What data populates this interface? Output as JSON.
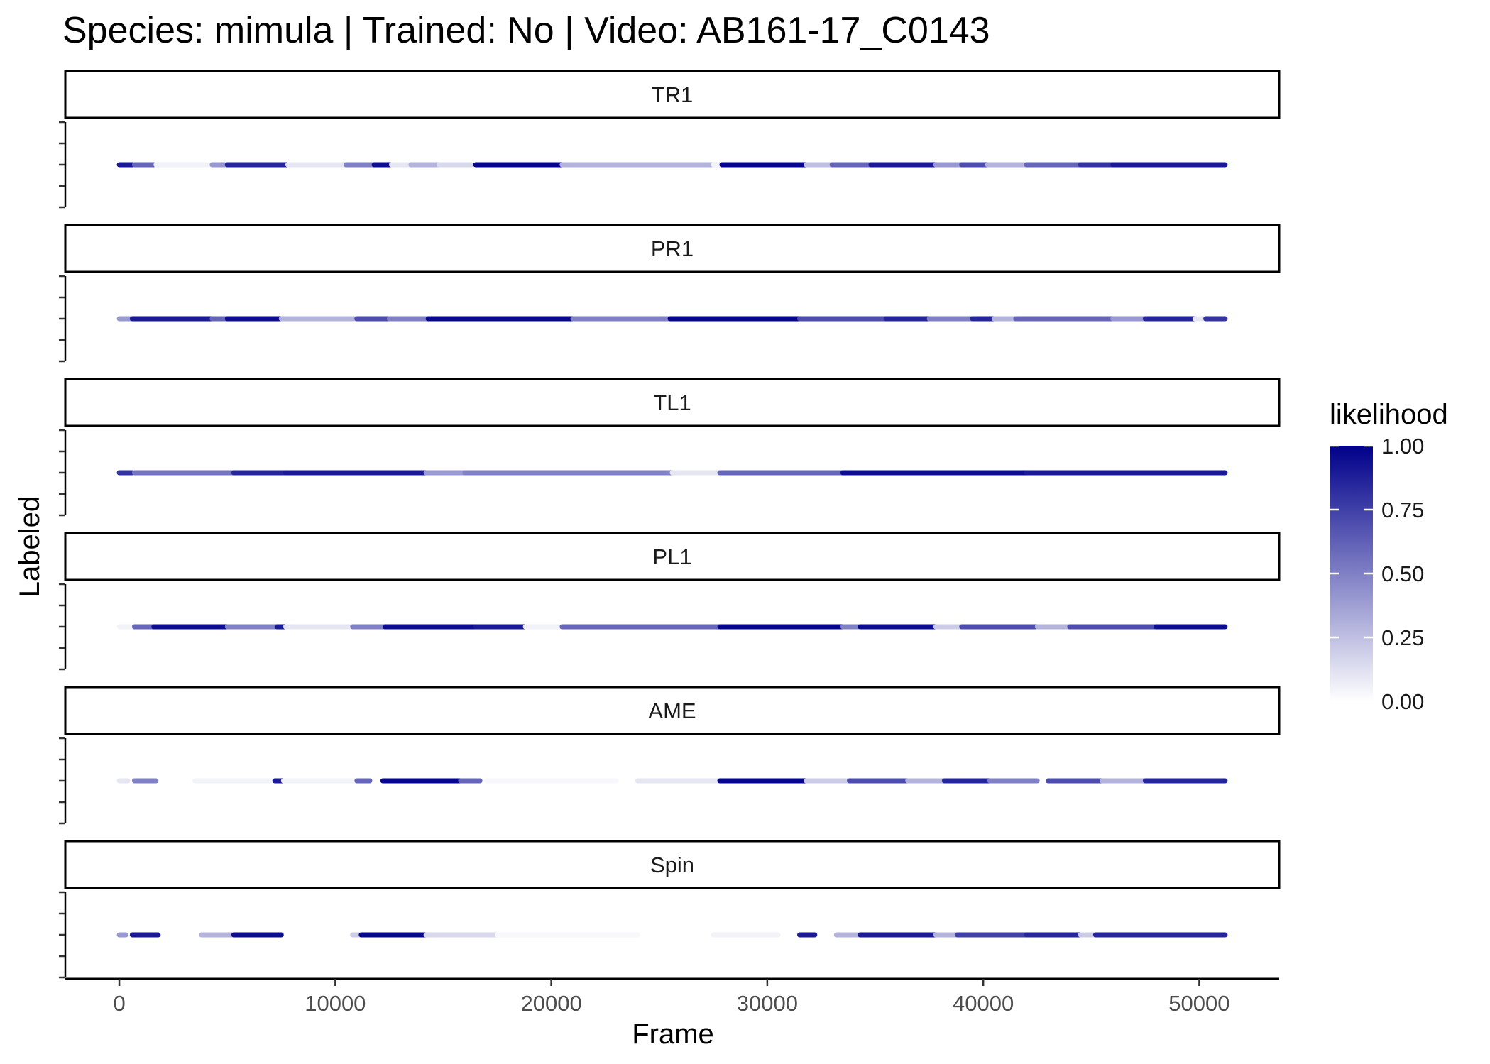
{
  "chart_data": {
    "type": "scatter",
    "title": "Species: mimula | Trained: No | Video: AB161-17_C0143",
    "xlabel": "Frame",
    "ylabel": "Labeled",
    "xlim": [
      -2500,
      53700
    ],
    "xticks": [
      0,
      10000,
      20000,
      30000,
      40000,
      50000
    ],
    "grid": false,
    "facets": [
      "TR1",
      "PR1",
      "TL1",
      "PL1",
      "AME",
      "Spin"
    ],
    "legend": {
      "title": "likelihood",
      "position": "right",
      "ticks": [
        "1.00",
        "0.75",
        "0.50",
        "0.25",
        "0.00"
      ],
      "color_low": "#ffffff",
      "color_high": "#00008b"
    },
    "series": [
      {
        "facet": "TR1",
        "segments": [
          [
            0,
            600,
            0.9
          ],
          [
            700,
            1600,
            0.6
          ],
          [
            1700,
            4200,
            0.05
          ],
          [
            4300,
            5000,
            0.4
          ],
          [
            5000,
            7800,
            0.85
          ],
          [
            7800,
            10500,
            0.1
          ],
          [
            10500,
            11800,
            0.5
          ],
          [
            11800,
            12600,
            0.95
          ],
          [
            12600,
            13500,
            0.1
          ],
          [
            13500,
            14800,
            0.3
          ],
          [
            14800,
            16500,
            0.15
          ],
          [
            16500,
            20500,
            0.98
          ],
          [
            20500,
            27500,
            0.3
          ],
          [
            27500,
            27900,
            0.05
          ],
          [
            27900,
            31800,
            0.98
          ],
          [
            31800,
            33000,
            0.25
          ],
          [
            33000,
            34800,
            0.6
          ],
          [
            34800,
            37800,
            0.9
          ],
          [
            37800,
            39000,
            0.4
          ],
          [
            39000,
            40200,
            0.7
          ],
          [
            40200,
            42000,
            0.3
          ],
          [
            42000,
            44500,
            0.6
          ],
          [
            44500,
            46000,
            0.8
          ],
          [
            46000,
            51200,
            0.9
          ]
        ]
      },
      {
        "facet": "PR1",
        "segments": [
          [
            0,
            600,
            0.4
          ],
          [
            600,
            4300,
            0.9
          ],
          [
            4300,
            5000,
            0.6
          ],
          [
            5000,
            7500,
            0.95
          ],
          [
            7500,
            11000,
            0.3
          ],
          [
            11000,
            12500,
            0.7
          ],
          [
            12500,
            14300,
            0.5
          ],
          [
            14300,
            21000,
            0.97
          ],
          [
            21000,
            25500,
            0.5
          ],
          [
            25500,
            31500,
            0.98
          ],
          [
            31500,
            35500,
            0.7
          ],
          [
            35500,
            37500,
            0.85
          ],
          [
            37500,
            39500,
            0.5
          ],
          [
            39500,
            40500,
            0.85
          ],
          [
            40500,
            41500,
            0.3
          ],
          [
            41500,
            46000,
            0.6
          ],
          [
            46000,
            47500,
            0.4
          ],
          [
            47500,
            49800,
            0.85
          ],
          [
            49800,
            50300,
            0.1
          ],
          [
            50300,
            51200,
            0.8
          ]
        ]
      },
      {
        "facet": "TL1",
        "segments": [
          [
            0,
            600,
            0.8
          ],
          [
            700,
            5300,
            0.55
          ],
          [
            5300,
            7700,
            0.85
          ],
          [
            7700,
            10500,
            0.9
          ],
          [
            10500,
            14200,
            0.9
          ],
          [
            14200,
            16000,
            0.4
          ],
          [
            16000,
            25600,
            0.5
          ],
          [
            25600,
            27800,
            0.1
          ],
          [
            27800,
            33500,
            0.6
          ],
          [
            33500,
            42000,
            0.95
          ],
          [
            42000,
            51200,
            0.9
          ]
        ]
      },
      {
        "facet": "PL1",
        "segments": [
          [
            0,
            700,
            0.05
          ],
          [
            700,
            1600,
            0.6
          ],
          [
            1600,
            5000,
            0.95
          ],
          [
            5000,
            7300,
            0.5
          ],
          [
            7300,
            7700,
            0.9
          ],
          [
            7700,
            10800,
            0.1
          ],
          [
            10800,
            12300,
            0.5
          ],
          [
            12300,
            16500,
            0.95
          ],
          [
            16500,
            18800,
            0.9
          ],
          [
            18800,
            20500,
            0.05
          ],
          [
            20500,
            27800,
            0.6
          ],
          [
            27800,
            33500,
            0.98
          ],
          [
            33500,
            34300,
            0.5
          ],
          [
            34300,
            37800,
            0.95
          ],
          [
            37800,
            39000,
            0.2
          ],
          [
            39000,
            42500,
            0.7
          ],
          [
            42500,
            44000,
            0.3
          ],
          [
            44000,
            48000,
            0.7
          ],
          [
            48000,
            51200,
            0.95
          ]
        ]
      },
      {
        "facet": "AME",
        "segments": [
          [
            0,
            400,
            0.1
          ],
          [
            700,
            1700,
            0.5
          ],
          [
            3500,
            7000,
            0.05
          ],
          [
            7200,
            7600,
            0.9
          ],
          [
            7600,
            11000,
            0.05
          ],
          [
            11000,
            11600,
            0.6
          ],
          [
            12200,
            15800,
            0.98
          ],
          [
            15800,
            16700,
            0.6
          ],
          [
            17000,
            23000,
            0.03
          ],
          [
            24000,
            27800,
            0.1
          ],
          [
            27800,
            31800,
            0.98
          ],
          [
            31800,
            33800,
            0.2
          ],
          [
            33800,
            36500,
            0.7
          ],
          [
            36500,
            38200,
            0.3
          ],
          [
            38200,
            40300,
            0.85
          ],
          [
            40300,
            42500,
            0.5
          ],
          [
            43000,
            45500,
            0.7
          ],
          [
            45500,
            47500,
            0.3
          ],
          [
            47500,
            51200,
            0.85
          ]
        ]
      },
      {
        "facet": "Spin",
        "segments": [
          [
            0,
            300,
            0.4
          ],
          [
            600,
            1800,
            0.9
          ],
          [
            3800,
            5300,
            0.3
          ],
          [
            5300,
            7500,
            0.95
          ],
          [
            10800,
            11200,
            0.2
          ],
          [
            11200,
            14200,
            0.97
          ],
          [
            14200,
            17500,
            0.15
          ],
          [
            17500,
            24000,
            0.03
          ],
          [
            27500,
            30500,
            0.05
          ],
          [
            31500,
            32200,
            0.9
          ],
          [
            33200,
            34300,
            0.3
          ],
          [
            34300,
            37800,
            0.9
          ],
          [
            37800,
            38800,
            0.3
          ],
          [
            38800,
            42000,
            0.75
          ],
          [
            42000,
            44500,
            0.85
          ],
          [
            44500,
            45200,
            0.2
          ],
          [
            45200,
            51200,
            0.85
          ]
        ]
      }
    ]
  }
}
